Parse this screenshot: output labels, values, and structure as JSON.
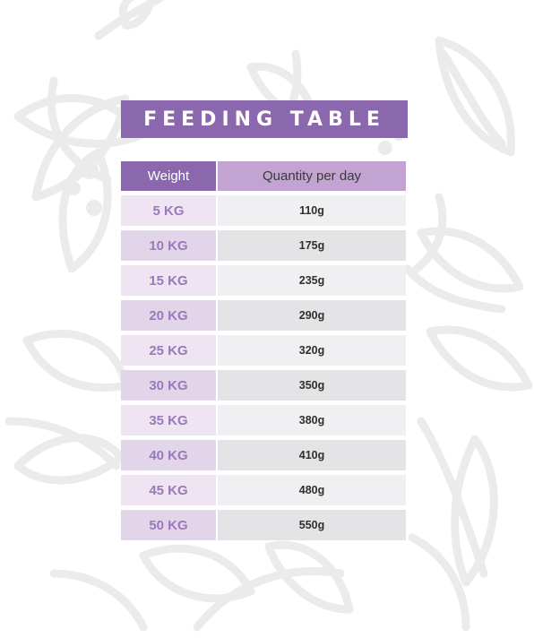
{
  "title": "FEEDING TABLE",
  "table": {
    "headers": {
      "weight": "Weight",
      "quantity": "Quantity per day"
    },
    "rows": [
      {
        "weight": "5 KG",
        "quantity": "110g"
      },
      {
        "weight": "10 KG",
        "quantity": "175g"
      },
      {
        "weight": "15 KG",
        "quantity": "235g"
      },
      {
        "weight": "20 KG",
        "quantity": "290g"
      },
      {
        "weight": "25 KG",
        "quantity": "320g"
      },
      {
        "weight": "30 KG",
        "quantity": "350g"
      },
      {
        "weight": "35 KG",
        "quantity": "380g"
      },
      {
        "weight": "40 KG",
        "quantity": "410g"
      },
      {
        "weight": "45 KG",
        "quantity": "480g"
      },
      {
        "weight": "50 KG",
        "quantity": "550g"
      }
    ]
  },
  "colors": {
    "accent": "#8b67ad",
    "header_light": "#c3a3d2",
    "weight_text": "#9a79ba"
  }
}
